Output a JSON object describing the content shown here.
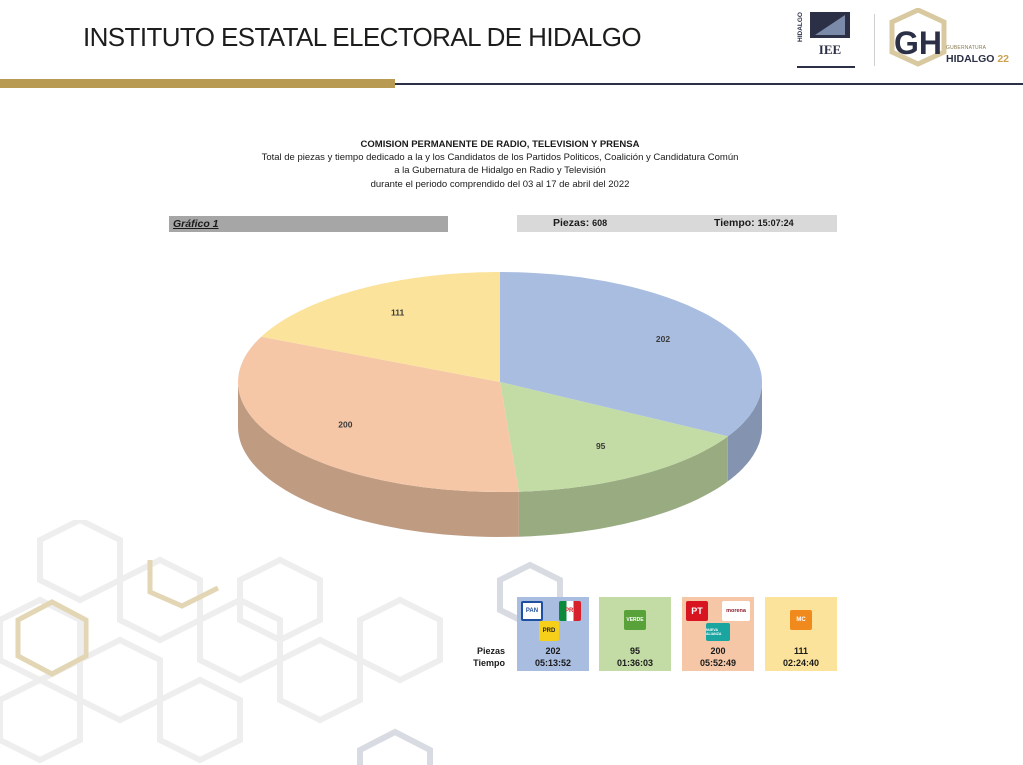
{
  "header": {
    "title": "INSTITUTO ESTATAL ELECTORAL DE HIDALGO",
    "logo_iee": {
      "vertical_text": "HIDALGO",
      "text": "IEE"
    },
    "logo_gh": {
      "letters": "GH",
      "small_text": "GUBERNATURA",
      "big_text": "HIDALGO",
      "big_number": "22"
    }
  },
  "report": {
    "title": "COMISION PERMANENTE DE RADIO, TELEVISION Y PRENSA",
    "subtitle_1": "Total de piezas y tiempo dedicado a la y los Candidatos de los Partidos Politicos, Coalición y Candidatura Común",
    "subtitle_2": "a la Gubernatura de Hidalgo en Radio y Televisión",
    "subtitle_3": "durante el periodo comprendido del 03 al 17 de abril del 2022",
    "grafico_label": "Gráfico 1",
    "piezas_label": "Piezas:",
    "piezas_total": "608",
    "tiempo_label": "Tiempo:",
    "tiempo_total": "15:07:24"
  },
  "table": {
    "row_label_piezas": "Piezas",
    "row_label_tiempo": "Tiempo",
    "columns": [
      {
        "piezas": "202",
        "tiempo": "05:13:52",
        "parties": [
          "PAN",
          "PRI",
          "PRD"
        ]
      },
      {
        "piezas": "95",
        "tiempo": "01:36:03",
        "parties": [
          "VERDE"
        ]
      },
      {
        "piezas": "200",
        "tiempo": "05:52:49",
        "parties": [
          "PT",
          "morena",
          "NUEVA ALIANZA"
        ]
      },
      {
        "piezas": "111",
        "tiempo": "02:24:40",
        "parties": [
          "MC"
        ]
      }
    ]
  },
  "chart_data": {
    "type": "pie",
    "style": "3d",
    "title": "",
    "slices": [
      {
        "value": 202,
        "color": "#a9bde0"
      },
      {
        "value": 95,
        "color": "#c3dba5"
      },
      {
        "value": 200,
        "color": "#f5c7a7"
      },
      {
        "value": 111,
        "color": "#fbe39b"
      }
    ]
  },
  "colors": {
    "gold": "#b99a52",
    "navy": "#2b3046",
    "col_blue": "#a9bde0",
    "col_green": "#c3dba5",
    "col_peach": "#f5c7a7",
    "col_yellow": "#fbe39b"
  }
}
